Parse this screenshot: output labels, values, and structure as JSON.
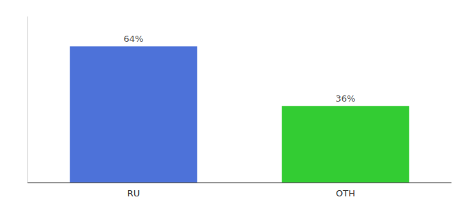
{
  "chart_data": {
    "type": "bar",
    "categories": [
      "RU",
      "OTH"
    ],
    "values": [
      64,
      36
    ],
    "value_labels": [
      "64%",
      "36%"
    ],
    "colors": [
      "#4d72d9",
      "#33cc33"
    ],
    "ylim": [
      0,
      78
    ],
    "data_labels": true,
    "tick_labels": "x"
  }
}
